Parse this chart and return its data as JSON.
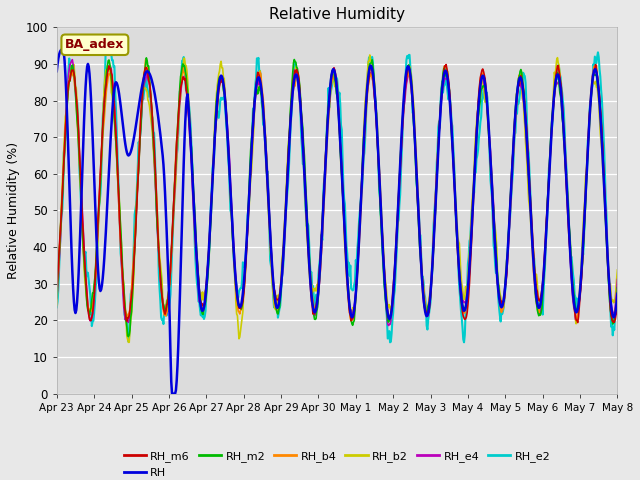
{
  "title": "Relative Humidity",
  "ylabel": "Relative Humidity (%)",
  "ylim": [
    0,
    100
  ],
  "fig_bg_color": "#e8e8e8",
  "plot_bg_color": "#dcdcdc",
  "ba_adex_label": "BA_adex",
  "legend_entries": [
    "RH_m6",
    "RH",
    "RH_m2",
    "RH_b4",
    "RH_b2",
    "RH_e4",
    "RH_e2"
  ],
  "line_colors": {
    "RH_m6": "#cc0000",
    "RH": "#0000dd",
    "RH_m2": "#00bb00",
    "RH_b4": "#ff8800",
    "RH_b2": "#cccc00",
    "RH_e4": "#bb00bb",
    "RH_e2": "#00cccc"
  },
  "line_widths": {
    "RH_m6": 1.2,
    "RH": 1.8,
    "RH_m2": 1.2,
    "RH_b4": 1.2,
    "RH_b2": 1.2,
    "RH_e4": 1.2,
    "RH_e2": 1.5
  },
  "xtick_labels": [
    "Apr 23",
    "Apr 24",
    "Apr 25",
    "Apr 26",
    "Apr 27",
    "Apr 28",
    "Apr 29",
    "Apr 30",
    "May 1",
    "May 2",
    "May 3",
    "May 4",
    "May 5",
    "May 6",
    "May 7",
    "May 8"
  ],
  "xtick_positions": [
    0,
    24,
    48,
    72,
    96,
    120,
    144,
    168,
    192,
    216,
    240,
    264,
    288,
    312,
    336,
    360
  ]
}
